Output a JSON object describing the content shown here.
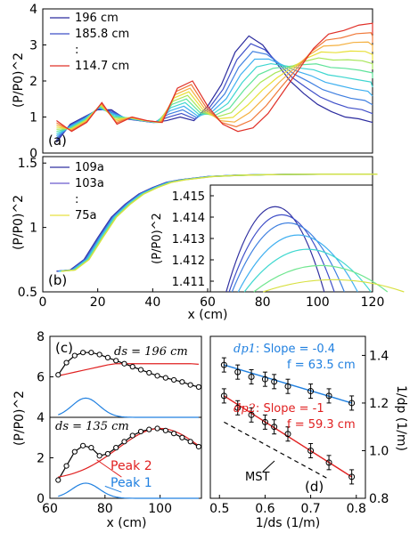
{
  "figure": {
    "panels": [
      {
        "label": "(a)",
        "ylabel": "(P/P0)^2",
        "xlabel": ""
      },
      {
        "label": "(b)",
        "ylabel": "(P/P0)^2",
        "xlabel": "x (cm)"
      },
      {
        "label": "(c)",
        "ylabel": "(P/P0)^2",
        "xlabel": "x (cm)"
      },
      {
        "label": "(d)",
        "ylabel": "1/dp (1/m)",
        "xlabel": "1/ds (1/m)"
      }
    ]
  },
  "chart_data": [
    {
      "type": "line",
      "panel": "a",
      "xlim": [
        0,
        120
      ],
      "ylim": [
        0,
        4
      ],
      "yticks": [
        0,
        1,
        2,
        3,
        4
      ],
      "legend": [
        "196 cm",
        "185.8 cm",
        ":",
        "114.7 cm"
      ],
      "legend_placement": "top-left",
      "curve_count": 11,
      "colors": [
        "#2b2b9e",
        "#3f4fc8",
        "#3f7fe0",
        "#3fb0f0",
        "#3ed6d0",
        "#5fe39a",
        "#a8e65a",
        "#e8e03a",
        "#f4b040",
        "#f07838",
        "#e03028"
      ],
      "curve_data": [
        {
          "name": "196 cm",
          "x": [
            5,
            10,
            15,
            20,
            25,
            30,
            35,
            40,
            45,
            50,
            55,
            60,
            65,
            70,
            75,
            80,
            85,
            90,
            95,
            100,
            105,
            110,
            115,
            120
          ],
          "y": [
            0.3,
            0.8,
            1.0,
            1.2,
            1.2,
            0.95,
            0.9,
            0.85,
            0.9,
            1.0,
            0.9,
            1.3,
            1.9,
            2.8,
            3.25,
            3.0,
            2.5,
            2.0,
            1.65,
            1.35,
            1.15,
            1.0,
            0.95,
            0.85
          ]
        },
        {
          "name": "114.7 cm",
          "x": [
            5,
            10,
            15,
            20,
            25,
            30,
            35,
            40,
            45,
            50,
            55,
            60,
            65,
            70,
            75,
            80,
            85,
            90,
            95,
            100,
            105,
            110,
            115,
            120
          ],
          "y": [
            0.9,
            0.6,
            0.85,
            1.4,
            0.8,
            1.0,
            0.9,
            0.85,
            1.8,
            2.0,
            1.3,
            0.8,
            0.6,
            0.7,
            1.1,
            1.7,
            2.3,
            2.9,
            3.3,
            3.4,
            3.55,
            3.6,
            3.5,
            3.3
          ]
        }
      ]
    },
    {
      "type": "line",
      "panel": "b",
      "xlim": [
        0,
        120
      ],
      "ylim": [
        0.5,
        1.55
      ],
      "yticks": [
        0.5,
        1,
        1.5
      ],
      "xticks": [
        0,
        20,
        40,
        60,
        80,
        100,
        120
      ],
      "legend": [
        "109a",
        "103a",
        ":",
        "75a"
      ],
      "legend_placement": "top-left",
      "x": [
        5,
        10,
        15,
        20,
        25,
        30,
        35,
        40,
        45,
        50,
        60,
        70,
        80,
        90,
        100,
        110,
        120
      ],
      "y": [
        0.66,
        0.67,
        0.75,
        0.92,
        1.08,
        1.18,
        1.26,
        1.31,
        1.35,
        1.37,
        1.395,
        1.405,
        1.41,
        1.412,
        1.413,
        1.413,
        1.413
      ],
      "inset": {
        "ylabel": "(P/P0)^2",
        "yticks": [
          1.411,
          1.412,
          1.413,
          1.414,
          1.415
        ],
        "ylim": [
          1.4105,
          1.4155
        ],
        "peaks": [
          {
            "x": 90,
            "y": 1.4147
          },
          {
            "x": 92,
            "y": 1.4143
          },
          {
            "x": 94,
            "y": 1.4139
          },
          {
            "x": 97,
            "y": 1.4133
          },
          {
            "x": 100,
            "y": 1.4126
          },
          {
            "x": 104,
            "y": 1.4118
          },
          {
            "x": 108,
            "y": 1.4111
          }
        ]
      }
    },
    {
      "type": "line",
      "panel": "c",
      "xlim": [
        60,
        115
      ],
      "ylim": [
        0,
        8
      ],
      "yticks": [
        0,
        2,
        4,
        6,
        8
      ],
      "xticks": [
        60,
        80,
        100
      ],
      "labels": {
        "top": "ds = 196 cm",
        "bottom": "ds = 135 cm"
      },
      "series": [
        {
          "name": "Peak 2",
          "color": "#e02020"
        },
        {
          "name": "Peak 1",
          "color": "#2080e0"
        }
      ],
      "top_points_x": [
        63,
        66,
        69,
        72,
        75,
        78,
        81,
        84,
        87,
        90,
        93,
        96,
        99,
        102,
        105,
        108,
        111,
        114
      ],
      "top_points_y": [
        6.1,
        6.7,
        7.05,
        7.2,
        7.2,
        7.1,
        6.95,
        6.8,
        6.65,
        6.5,
        6.35,
        6.2,
        6.05,
        5.95,
        5.85,
        5.75,
        5.6,
        5.5
      ],
      "bottom_points_x": [
        63,
        66,
        69,
        72,
        75,
        78,
        81,
        84,
        87,
        90,
        93,
        96,
        99,
        102,
        105,
        108,
        111,
        114
      ],
      "bottom_points_y": [
        0.9,
        1.6,
        2.3,
        2.6,
        2.5,
        2.1,
        2.2,
        2.5,
        2.8,
        3.1,
        3.3,
        3.4,
        3.45,
        3.35,
        3.2,
        3.0,
        2.8,
        2.55
      ]
    },
    {
      "type": "scatter",
      "panel": "d",
      "xlim": [
        0.48,
        0.82
      ],
      "ylim": [
        0.8,
        1.48
      ],
      "xticks": [
        0.5,
        0.6,
        0.7,
        0.8
      ],
      "yticks": [
        0.8,
        1.0,
        1.2,
        1.4
      ],
      "series": [
        {
          "name": "dp1",
          "note": "Slope = -0.4",
          "focal": "f = 63.5 cm",
          "color": "#2080e0",
          "x": [
            0.51,
            0.54,
            0.57,
            0.6,
            0.62,
            0.65,
            0.7,
            0.74,
            0.79
          ],
          "y": [
            1.36,
            1.33,
            1.31,
            1.3,
            1.29,
            1.27,
            1.25,
            1.23,
            1.2
          ]
        },
        {
          "name": "dp2",
          "note": "Slope = -1",
          "focal": "f = 59.3 cm",
          "color": "#e02020",
          "x": [
            0.51,
            0.54,
            0.57,
            0.6,
            0.62,
            0.65,
            0.7,
            0.74,
            0.79
          ],
          "y": [
            1.23,
            1.18,
            1.15,
            1.12,
            1.1,
            1.07,
            1.0,
            0.95,
            0.89
          ]
        },
        {
          "name": "MST",
          "style": "dashed",
          "color": "#000000",
          "x": [
            0.51,
            0.74
          ],
          "y": [
            1.12,
            0.88
          ]
        }
      ]
    }
  ]
}
